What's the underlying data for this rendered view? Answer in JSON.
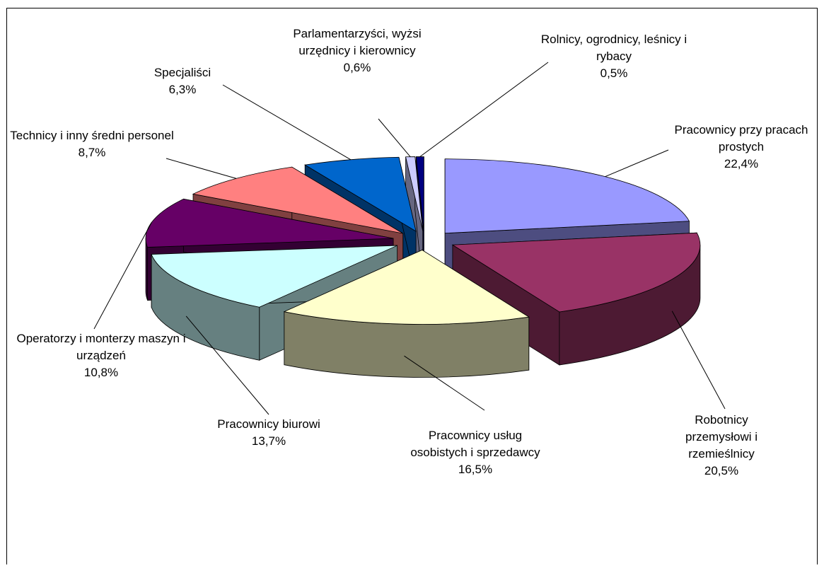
{
  "chart_data": {
    "type": "pie3d",
    "categories": [
      "Pracownicy przy pracach prostych",
      "Robotnicy przemysłowi i rzemieślnicy",
      "Pracownicy usług osobistych i sprzedawcy",
      "Pracownicy biurowi",
      "Operatorzy i monterzy maszyn i urządzeń",
      "Technicy i inny średni personel",
      "Specjaliści",
      "Parlamentarzyści, wyżsi urzędnicy i kierownicy",
      "Rolnicy, ogrodnicy, leśnicy i rybacy"
    ],
    "values": [
      22.4,
      20.5,
      16.5,
      13.7,
      10.8,
      8.7,
      6.3,
      0.6,
      0.5
    ],
    "value_labels": [
      "22,4%",
      "20,5%",
      "16,5%",
      "13,7%",
      "10,8%",
      "8,7%",
      "6,3%",
      "0,6%",
      "0,5%"
    ],
    "colors": [
      "#9999ff",
      "#993366",
      "#ffffcc",
      "#ccffff",
      "#660066",
      "#ff8080",
      "#0066cc",
      "#ccccff",
      "#000080"
    ]
  }
}
